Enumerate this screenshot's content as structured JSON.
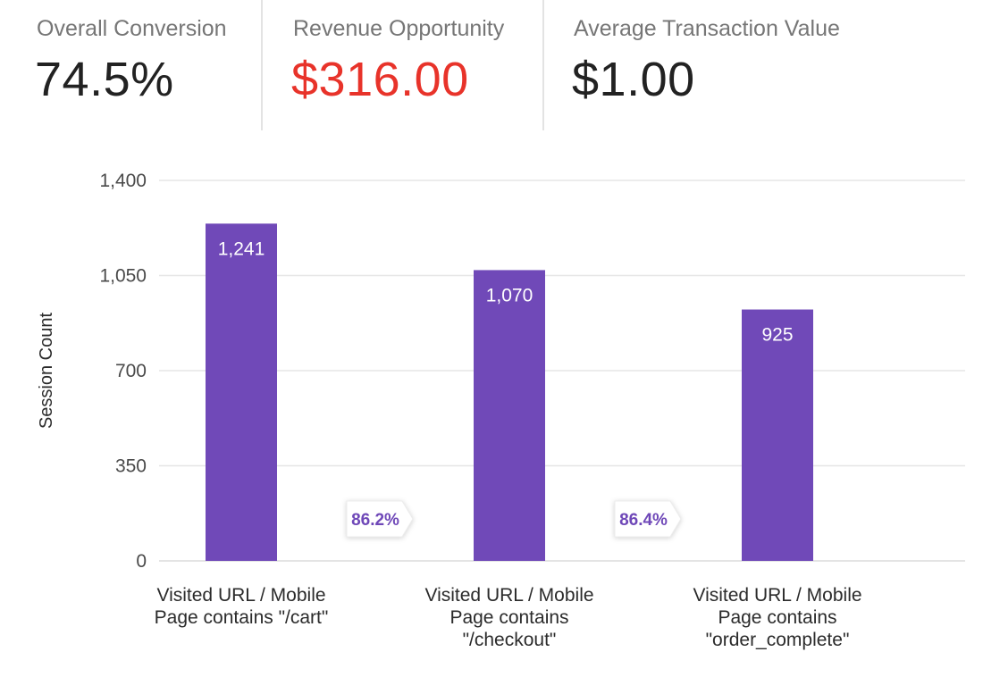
{
  "kpis": [
    {
      "label": "Overall Conversion",
      "value": "74.5%",
      "color": "#222222"
    },
    {
      "label": "Revenue Opportunity",
      "value": "$316.00",
      "color": "#e8332a"
    },
    {
      "label": "Average Transaction Value",
      "value": "$1.00",
      "color": "#222222"
    }
  ],
  "colors": {
    "bar": "#7049b8",
    "grid": "#e6e6e6",
    "conversion_text": "#6f48b8"
  },
  "chart_data": {
    "type": "bar",
    "ylabel": "Session Count",
    "ylim": [
      0,
      1400
    ],
    "yticks": [
      0,
      350,
      700,
      1050,
      1400
    ],
    "ytick_labels": [
      "0",
      "350",
      "700",
      "1,050",
      "1,400"
    ],
    "grid": true,
    "categories": [
      [
        "Visited URL / Mobile",
        "Page contains \"/cart\""
      ],
      [
        "Visited URL / Mobile",
        "Page contains",
        "\"/checkout\""
      ],
      [
        "Visited URL / Mobile",
        "Page contains",
        "\"order_complete\""
      ]
    ],
    "values": [
      1241,
      1070,
      925
    ],
    "value_labels": [
      "1,241",
      "1,070",
      "925"
    ],
    "step_conversions": [
      "86.2%",
      "86.4%"
    ]
  }
}
